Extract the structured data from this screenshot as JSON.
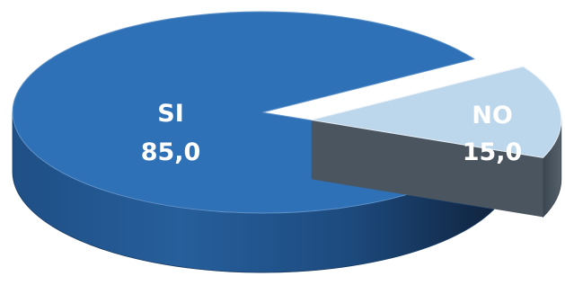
{
  "chart_data": {
    "type": "pie",
    "style": "3d-exploded",
    "slices": [
      {
        "name": "SI",
        "value": 85.0,
        "value_label": "85,0",
        "color": "#2f71b6"
      },
      {
        "name": "NO",
        "value": 15.0,
        "value_label": "15,0",
        "color": "#bcd6ec"
      }
    ],
    "exploded_slice": "NO"
  }
}
